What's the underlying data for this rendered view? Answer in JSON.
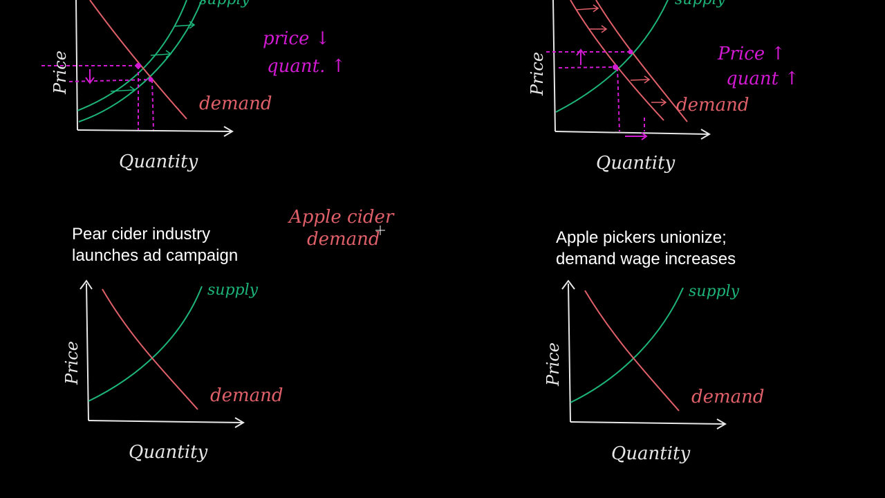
{
  "panels": {
    "top_left": {
      "axis_x": "Quantity",
      "axis_y": "Price",
      "supply_label": "supply",
      "demand_label": "demand",
      "note_line1": "price ↓",
      "note_line2": "quant. ↑"
    },
    "top_right": {
      "axis_x": "Quantity",
      "axis_y": "Price",
      "supply_label": "supply",
      "demand_label": "demand",
      "note_line1": "Price ↑",
      "note_line2": "quant ↑"
    },
    "bottom_left": {
      "caption_line1": "Pear cider industry",
      "caption_line2": "launches ad campaign",
      "axis_x": "Quantity",
      "axis_y": "Price",
      "supply_label": "supply",
      "demand_label": "demand"
    },
    "bottom_right": {
      "caption_line1": "Apple pickers unionize;",
      "caption_line2": "demand wage increases",
      "axis_x": "Quantity",
      "axis_y": "Price",
      "supply_label": "supply",
      "demand_label": "demand"
    }
  },
  "annotation": {
    "line1": "Apple cider",
    "line2": "demand"
  },
  "colors": {
    "background": "#000000",
    "axes": "#e8e8e8",
    "supply": "#1db57a",
    "demand": "#e0606a",
    "highlight": "#d21ad2",
    "caption": "#ffffff"
  }
}
